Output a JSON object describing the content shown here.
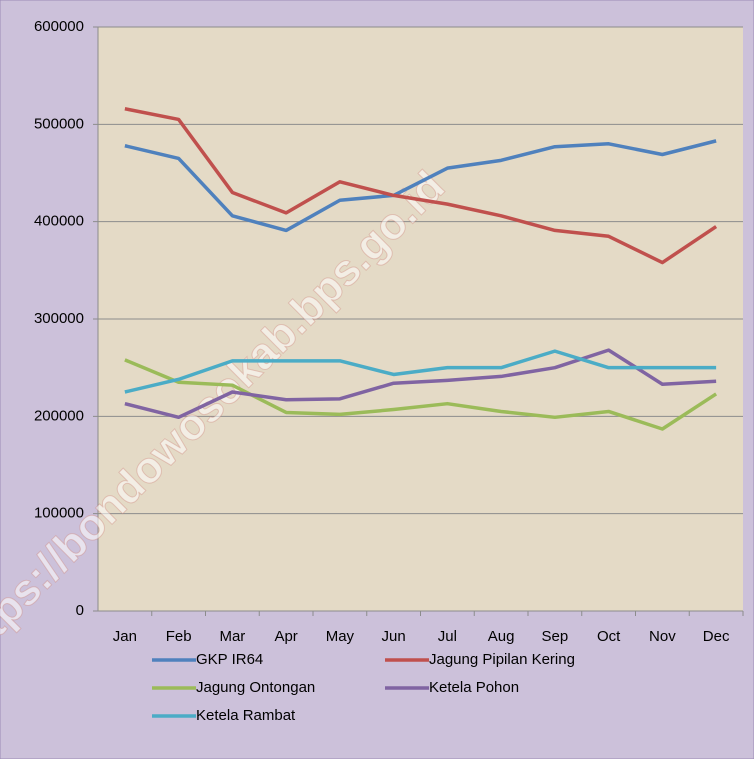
{
  "chart_data": {
    "type": "line",
    "watermark": "https://bondowosokab.bps.go.id",
    "categories": [
      "Jan",
      "Feb",
      "Mar",
      "Apr",
      "May",
      "Jun",
      "Jul",
      "Aug",
      "Sep",
      "Oct",
      "Nov",
      "Dec"
    ],
    "series": [
      {
        "name": "GKP IR64",
        "color": "#4f81bd",
        "values": [
          478000,
          465000,
          406000,
          391000,
          422000,
          427000,
          455000,
          463000,
          477000,
          480000,
          469000,
          483000
        ]
      },
      {
        "name": "Jagung Pipilan Kering",
        "color": "#c0504d",
        "values": [
          516000,
          505000,
          430000,
          409000,
          441000,
          427000,
          418000,
          406000,
          391000,
          385000,
          358000,
          395000
        ]
      },
      {
        "name": "Jagung Ontongan",
        "color": "#9bbb59",
        "values": [
          258000,
          235000,
          232000,
          204000,
          202000,
          207000,
          213000,
          205000,
          199000,
          205000,
          187000,
          223000
        ]
      },
      {
        "name": "Ketela Pohon",
        "color": "#8064a2",
        "values": [
          213000,
          199000,
          225000,
          217000,
          218000,
          234000,
          237000,
          241000,
          250000,
          268000,
          233000,
          236000
        ]
      },
      {
        "name": "Ketela Rambat",
        "color": "#4bacc6",
        "values": [
          225000,
          238000,
          257000,
          257000,
          257000,
          243000,
          250000,
          250000,
          267000,
          250000,
          250000,
          250000
        ]
      }
    ],
    "ylim": [
      0,
      600000
    ],
    "yticks": [
      0,
      100000,
      200000,
      300000,
      400000,
      500000,
      600000
    ],
    "grid": true,
    "legend": "bottom"
  }
}
